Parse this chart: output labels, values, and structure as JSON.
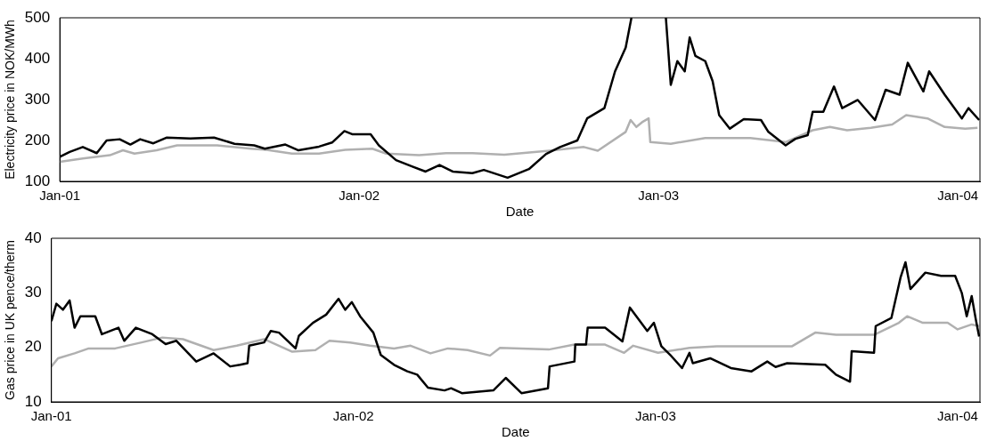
{
  "chart_data": [
    {
      "type": "line",
      "xlabel": "Date",
      "ylabel": "Electricity price in NOK/MWh",
      "xlim": [
        "2001-01-01",
        "2004-01-28"
      ],
      "ylim": [
        100,
        500
      ],
      "yticks": [
        100,
        200,
        300,
        400,
        500
      ],
      "xticks": [
        {
          "value": "2001-01-01",
          "label": "Jan-01"
        },
        {
          "value": "2002-01-01",
          "label": "Jan-02"
        },
        {
          "value": "2003-01-01",
          "label": "Jan-03"
        },
        {
          "value": "2004-01-01",
          "label": "Jan-04"
        }
      ],
      "grid": false,
      "legend": false,
      "series": [
        {
          "color": "#000000",
          "x": [
            "2001-01-01",
            "2001-01-13",
            "2001-01-29",
            "2001-02-15",
            "2001-02-27",
            "2001-03-15",
            "2001-03-28",
            "2001-04-09",
            "2001-04-25",
            "2001-05-11",
            "2001-06-09",
            "2001-07-08",
            "2001-08-02",
            "2001-08-26",
            "2001-09-08",
            "2001-10-03",
            "2001-10-19",
            "2001-11-13",
            "2001-11-29",
            "2001-12-14",
            "2001-12-24",
            "2002-01-15",
            "2002-01-25",
            "2002-02-15",
            "2002-03-07",
            "2002-03-23",
            "2002-04-09",
            "2002-04-25",
            "2002-05-19",
            "2002-06-02",
            "2002-07-01",
            "2002-07-27",
            "2002-08-17",
            "2002-09-03",
            "2002-09-24",
            "2002-10-06",
            "2002-10-27",
            "2002-11-09",
            "2002-11-22",
            "2002-11-29",
            "2002-12-20",
            "2003-01-10",
            "2003-01-16",
            "2003-01-24",
            "2003-02-02",
            "2003-02-08",
            "2003-02-15",
            "2003-02-27",
            "2003-03-08",
            "2003-03-16",
            "2003-03-29",
            "2003-04-15",
            "2003-05-06",
            "2003-05-15",
            "2003-06-05",
            "2003-06-17",
            "2003-07-02",
            "2003-07-08",
            "2003-07-21",
            "2003-08-03",
            "2003-08-13",
            "2003-09-01",
            "2003-09-22",
            "2003-10-05",
            "2003-10-22",
            "2003-11-01",
            "2003-11-20",
            "2003-11-27",
            "2003-12-16",
            "2004-01-06",
            "2004-01-14",
            "2004-01-27"
          ],
          "values": [
            160,
            172,
            184,
            169,
            200,
            203,
            190,
            203,
            193,
            207,
            205,
            207,
            192,
            188,
            180,
            190,
            176,
            185,
            195,
            223,
            215,
            215,
            188,
            152,
            136,
            124,
            140,
            124,
            120,
            128,
            109,
            130,
            167,
            184,
            200,
            254,
            279,
            369,
            427,
            500,
            null,
            500,
            336,
            394,
            369,
            452,
            407,
            394,
            345,
            262,
            229,
            252,
            250,
            221,
            188,
            204,
            213,
            270,
            270,
            332,
            279,
            299,
            250,
            324,
            312,
            390,
            320,
            369,
            312,
            254,
            279,
            250
          ]
        },
        {
          "color": "#b0b0b0",
          "x": [
            "2001-01-01",
            "2001-01-29",
            "2001-03-03",
            "2001-03-19",
            "2001-04-02",
            "2001-04-29",
            "2001-05-24",
            "2001-07-12",
            "2001-08-22",
            "2001-09-10",
            "2001-10-11",
            "2001-11-13",
            "2001-12-15",
            "2002-01-17",
            "2002-02-03",
            "2002-03-15",
            "2002-04-17",
            "2002-05-19",
            "2002-06-27",
            "2002-08-21",
            "2002-10-02",
            "2002-10-19",
            "2002-11-22",
            "2002-11-28",
            "2002-12-05",
            "2002-12-13",
            "2002-12-20",
            "2002-12-22",
            "2003-01-16",
            "2003-02-27",
            "2003-04-23",
            "2003-06-05",
            "2003-07-08",
            "2003-07-29",
            "2003-08-19",
            "2003-09-17",
            "2003-10-13",
            "2003-10-30",
            "2003-11-25",
            "2003-12-16",
            "2004-01-10",
            "2004-01-25"
          ],
          "values": [
            148,
            156,
            164,
            176,
            168,
            176,
            188,
            188,
            180,
            177,
            168,
            168,
            177,
            180,
            168,
            164,
            169,
            169,
            165,
            175,
            184,
            175,
            221,
            250,
            233,
            246,
            254,
            196,
            192,
            206,
            206,
            196,
            225,
            233,
            225,
            231,
            239,
            262,
            254,
            233,
            229,
            231
          ]
        }
      ]
    },
    {
      "type": "line",
      "xlabel": "Date",
      "ylabel": "Gas price in UK pence/therm",
      "xlim": [
        "2001-01-01",
        "2004-01-28"
      ],
      "ylim": [
        10,
        40
      ],
      "yticks": [
        10,
        20,
        30,
        40
      ],
      "xticks": [
        {
          "value": "2001-01-01",
          "label": "Jan-01"
        },
        {
          "value": "2002-01-01",
          "label": "Jan-02"
        },
        {
          "value": "2003-01-01",
          "label": "Jan-03"
        },
        {
          "value": "2004-01-01",
          "label": "Jan-04"
        }
      ],
      "grid": false,
      "legend": false,
      "series": [
        {
          "color": "#000000",
          "x": [
            "2001-01-01",
            "2001-01-07",
            "2001-01-15",
            "2001-01-23",
            "2001-01-29",
            "2001-02-05",
            "2001-02-23",
            "2001-03-03",
            "2001-03-23",
            "2001-03-30",
            "2001-04-13",
            "2001-05-03",
            "2001-05-19",
            "2001-06-01",
            "2001-06-25",
            "2001-07-16",
            "2001-08-05",
            "2001-08-17",
            "2001-08-26",
            "2001-08-28",
            "2001-09-15",
            "2001-09-23",
            "2001-10-03",
            "2001-10-23",
            "2001-10-27",
            "2001-11-13",
            "2001-11-29",
            "2001-12-14",
            "2001-12-22",
            "2001-12-30",
            "2002-01-09",
            "2002-01-25",
            "2002-02-03",
            "2002-02-19",
            "2002-03-07",
            "2002-03-19",
            "2002-04-01",
            "2002-04-21",
            "2002-04-29",
            "2002-05-12",
            "2002-06-19",
            "2002-07-04",
            "2002-07-23",
            "2002-08-24",
            "2002-08-26",
            "2002-09-25",
            "2002-09-26",
            "2002-10-09",
            "2002-10-11",
            "2002-11-01",
            "2002-11-22",
            "2002-12-01",
            "2002-12-22",
            "2002-12-30",
            "2003-01-08",
            "2003-01-20",
            "2003-02-02",
            "2003-02-11",
            "2003-02-15",
            "2003-03-08",
            "2003-04-02",
            "2003-04-27",
            "2003-05-16",
            "2003-05-26",
            "2003-06-09",
            "2003-07-25",
            "2003-08-07",
            "2003-08-24",
            "2003-08-26",
            "2003-09-22",
            "2003-09-24",
            "2003-10-13",
            "2003-10-24",
            "2003-10-30",
            "2003-11-05",
            "2003-11-23",
            "2003-12-12",
            "2003-12-29",
            "2004-01-06",
            "2004-01-12",
            "2004-01-18",
            "2004-01-23",
            "2004-01-27"
          ],
          "values": [
            24.8,
            28.0,
            26.9,
            28.6,
            23.6,
            25.7,
            25.7,
            22.4,
            23.6,
            21.2,
            23.6,
            22.4,
            20.6,
            21.2,
            17.4,
            18.9,
            16.5,
            16.8,
            17.1,
            20.3,
            20.9,
            23.0,
            22.7,
            19.8,
            22.1,
            24.5,
            26.0,
            28.9,
            26.9,
            28.3,
            25.7,
            22.7,
            18.6,
            16.8,
            15.6,
            15.0,
            12.6,
            12.1,
            12.5,
            11.6,
            12.1,
            14.4,
            11.6,
            12.5,
            16.5,
            17.4,
            20.5,
            20.5,
            23.6,
            23.6,
            21.1,
            27.3,
            23.0,
            24.5,
            20.2,
            18.4,
            16.2,
            19.0,
            17.1,
            18.0,
            16.2,
            15.6,
            17.4,
            16.4,
            17.1,
            16.8,
            15.0,
            13.7,
            19.3,
            19.0,
            23.9,
            25.4,
            32.8,
            35.6,
            30.7,
            33.7,
            33.1,
            33.1,
            30.0,
            25.7,
            29.4,
            25.1,
            22.0
          ]
        },
        {
          "color": "#b0b0b0",
          "x": [
            "2001-01-01",
            "2001-01-09",
            "2001-01-29",
            "2001-02-15",
            "2001-03-19",
            "2001-04-20",
            "2001-05-15",
            "2001-06-09",
            "2001-07-16",
            "2001-08-13",
            "2001-09-15",
            "2001-10-19",
            "2001-11-16",
            "2001-12-03",
            "2001-12-28",
            "2002-01-21",
            "2002-02-19",
            "2002-03-11",
            "2002-04-04",
            "2002-04-25",
            "2002-05-19",
            "2002-06-15",
            "2002-06-27",
            "2002-08-25",
            "2002-09-25",
            "2002-11-01",
            "2002-11-24",
            "2002-12-05",
            "2003-01-04",
            "2003-02-11",
            "2003-03-16",
            "2003-05-15",
            "2003-06-15",
            "2003-07-13",
            "2003-08-07",
            "2003-09-22",
            "2003-10-22",
            "2003-11-01",
            "2003-11-20",
            "2003-12-20",
            "2004-01-01",
            "2004-01-18",
            "2004-01-27"
          ],
          "values": [
            16.5,
            18.0,
            18.9,
            19.8,
            19.8,
            20.9,
            21.8,
            21.5,
            19.5,
            20.3,
            21.5,
            19.2,
            19.5,
            21.2,
            20.9,
            20.3,
            19.8,
            20.3,
            18.9,
            19.8,
            19.5,
            18.5,
            19.9,
            19.6,
            20.5,
            20.5,
            19.0,
            20.3,
            19.0,
            19.9,
            20.2,
            20.2,
            20.2,
            22.7,
            22.3,
            22.3,
            24.5,
            25.7,
            24.5,
            24.5,
            23.3,
            24.2,
            23.9
          ]
        }
      ]
    }
  ]
}
